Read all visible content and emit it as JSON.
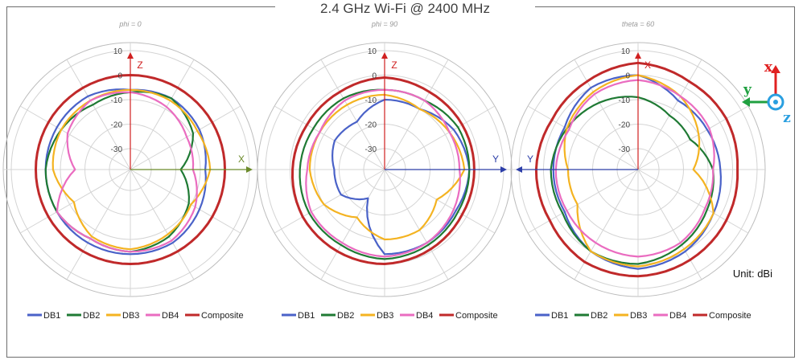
{
  "title": "2.4 GHz Wi-Fi @ 2400 MHz",
  "unit_label": "Unit: dBi",
  "coord_system": {
    "x_label": "x",
    "y_label": "y",
    "z_label": "z",
    "x_color": "#e02020",
    "y_color": "#20a040",
    "z_color": "#2a9fe0"
  },
  "colors": {
    "DB1": "#4a62c8",
    "DB2": "#1f7a34",
    "DB3": "#f4b321",
    "DB4": "#ea6cc0",
    "Composite": "#c0292a",
    "h_axis": "#6b8a2a",
    "v_axis": "#d02020",
    "y_axis": "#2c3ea8",
    "grid": "#d4d4d4"
  },
  "chart_data": [
    {
      "type": "polar",
      "subtitle": "phi = 0",
      "radial_range": [
        -30,
        10
      ],
      "radial_ticks": [
        "10",
        "0",
        "-10",
        "-20",
        "-30"
      ],
      "axis_up_label": "Z",
      "axis_right_label": "X",
      "axis_left_label": "",
      "angles_deg": [
        0,
        30,
        60,
        90,
        120,
        150,
        180,
        210,
        240,
        270,
        300,
        330
      ],
      "series": [
        {
          "name": "DB1",
          "values": [
            -6,
            -5,
            -6,
            -8,
            -6,
            -4,
            -4,
            -4,
            -4,
            -4,
            -4,
            -4
          ]
        },
        {
          "name": "DB2",
          "values": [
            -7,
            -5,
            -9,
            -18,
            -11,
            -7,
            -5,
            -6,
            -4,
            -4,
            -6,
            -8
          ]
        },
        {
          "name": "DB3",
          "values": [
            -6,
            -6,
            -7,
            -6,
            -10,
            -8,
            -6,
            -7,
            -12,
            -7,
            -6,
            -6
          ]
        },
        {
          "name": "DB4",
          "values": [
            -7,
            -9,
            -12,
            -13,
            -8,
            -5,
            -5,
            -6,
            -4,
            -16,
            -9,
            -6
          ]
        },
        {
          "name": "Composite",
          "values": [
            0,
            0,
            0,
            0,
            0,
            0,
            0,
            0,
            0,
            0,
            0,
            0
          ]
        }
      ]
    },
    {
      "type": "polar",
      "subtitle": "phi = 90",
      "radial_range": [
        -30,
        10
      ],
      "radial_ticks": [
        "10",
        "0",
        "-10",
        "-20",
        "-30"
      ],
      "axis_up_label": "Z",
      "axis_right_label": "Y",
      "axis_left_label": "",
      "angles_deg": [
        0,
        30,
        60,
        90,
        120,
        150,
        180,
        210,
        240,
        270,
        300,
        330
      ],
      "series": [
        {
          "name": "DB1",
          "values": [
            -10,
            -10,
            -6,
            -4,
            -5,
            -4,
            -4,
            -25,
            -18,
            -18,
            -15,
            -16
          ]
        },
        {
          "name": "DB2",
          "values": [
            -6,
            -6,
            -4,
            -4,
            -4,
            -3,
            -2,
            -3,
            -3,
            -4,
            -5,
            -5
          ]
        },
        {
          "name": "DB3",
          "values": [
            -8,
            -10,
            -8,
            -6,
            -14,
            -10,
            -10,
            -16,
            -10,
            -8,
            -8,
            -8
          ]
        },
        {
          "name": "DB4",
          "values": [
            -6,
            -6,
            -8,
            -8,
            -6,
            -4,
            -3,
            -4,
            -4,
            -7,
            -8,
            -6
          ]
        },
        {
          "name": "Composite",
          "values": [
            -1,
            -2,
            -2,
            -2,
            -2,
            -1,
            0,
            0,
            0,
            -1,
            -2,
            -2
          ]
        }
      ]
    },
    {
      "type": "polar",
      "subtitle": "theta = 60",
      "radial_range": [
        -30,
        10
      ],
      "radial_ticks": [
        "10",
        "0",
        "-10",
        "-20",
        "-30"
      ],
      "axis_up_label": "X",
      "axis_right_label": "",
      "axis_left_label": "Y",
      "angles_deg": [
        0,
        30,
        60,
        90,
        120,
        150,
        180,
        210,
        240,
        270,
        300,
        330
      ],
      "series": [
        {
          "name": "DB1",
          "values": [
            0,
            -6,
            -6,
            -5,
            -3,
            0,
            2,
            0,
            -4,
            -4,
            -4,
            0
          ]
        },
        {
          "name": "DB2",
          "values": [
            -9,
            -13,
            -14,
            -8,
            -6,
            -3,
            0,
            0,
            -3,
            -3,
            -5,
            -7
          ]
        },
        {
          "name": "DB3",
          "values": [
            0,
            -4,
            -10,
            -16,
            -3,
            -1,
            1,
            0,
            -10,
            -10,
            -5,
            -2
          ]
        },
        {
          "name": "DB4",
          "values": [
            -2,
            -4,
            -5,
            -8,
            -7,
            -4,
            -3,
            -4,
            -5,
            -5,
            -6,
            -3
          ]
        },
        {
          "name": "Composite",
          "values": [
            5,
            3,
            3,
            2,
            3,
            4,
            5,
            5,
            3,
            3,
            2,
            3
          ]
        }
      ]
    }
  ],
  "legend": [
    "DB1",
    "DB2",
    "DB3",
    "DB4",
    "Composite"
  ]
}
